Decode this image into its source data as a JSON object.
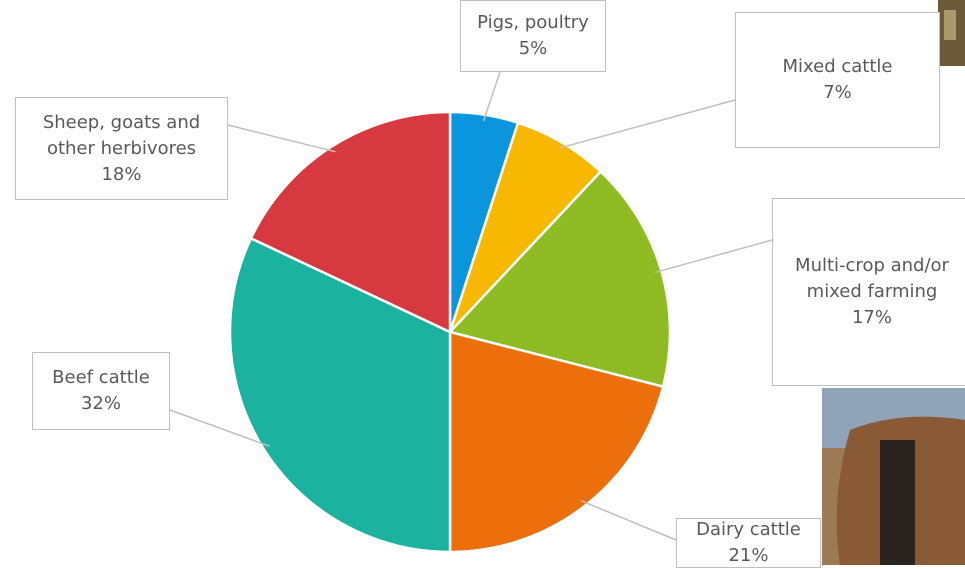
{
  "chart_data": {
    "type": "pie",
    "categories": [
      "Pigs, poultry",
      "Mixed cattle",
      "Multi-crop and/or mixed farming",
      "Dairy cattle",
      "Beef cattle",
      "Sheep, goats and other herbivores"
    ],
    "values": [
      5,
      7,
      17,
      21,
      32,
      18
    ],
    "value_labels": [
      "5%",
      "7%",
      "17%",
      "21%",
      "32%",
      "18%"
    ],
    "colors": [
      "#0b95dc",
      "#f8b800",
      "#8fbb24",
      "#ec6f0c",
      "#1bb29f",
      "#d6393f"
    ]
  }
}
